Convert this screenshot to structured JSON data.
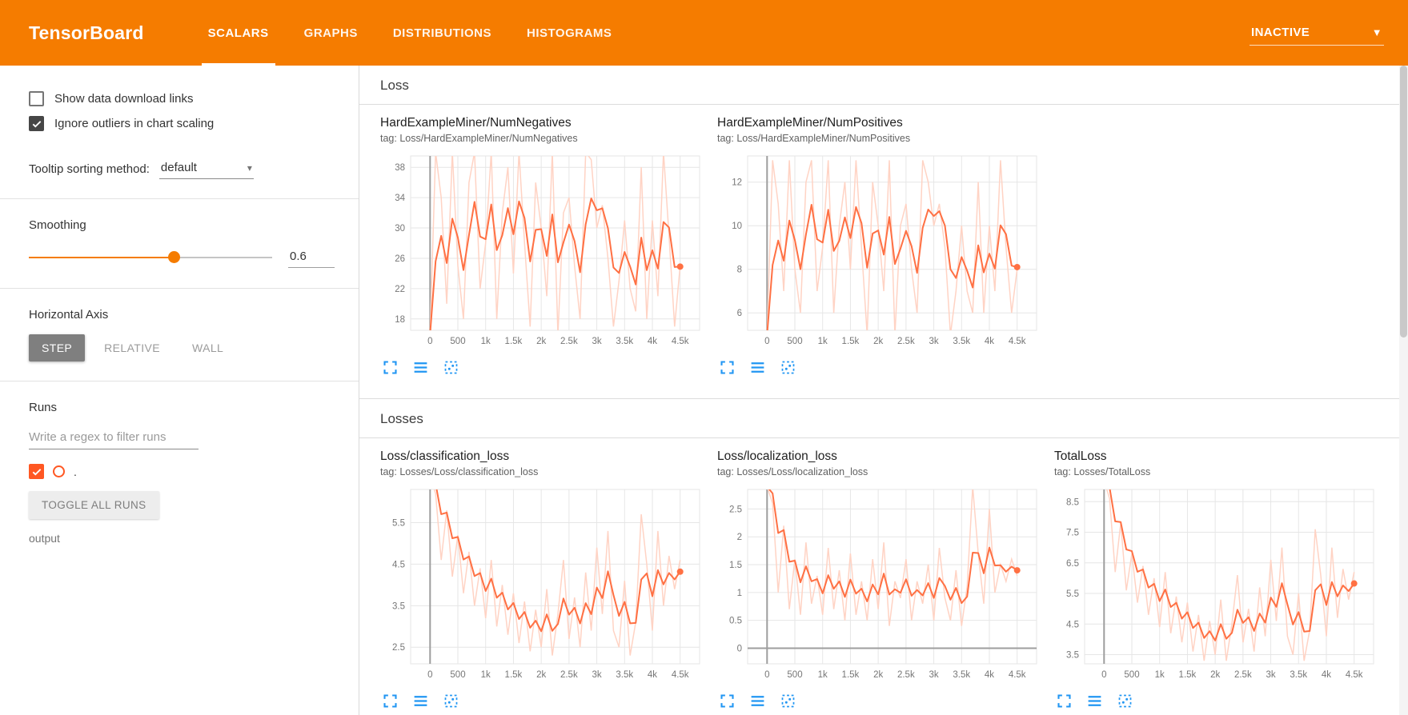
{
  "colors": {
    "header_bg": "#f57c00",
    "accent_orange": "#f57c00",
    "line": "#ff7043",
    "line_faint": "#ffd3c4",
    "icon_blue": "#2196f3",
    "run_color": "#ff5722",
    "checkbox_dark": "#464646"
  },
  "icons": {
    "caret_down": "▾",
    "caret_down_filled": "▼"
  },
  "header": {
    "logo": "TensorBoard",
    "tabs": [
      {
        "label": "SCALARS",
        "active": true
      },
      {
        "label": "GRAPHS",
        "active": false
      },
      {
        "label": "DISTRIBUTIONS",
        "active": false
      },
      {
        "label": "HISTOGRAMS",
        "active": false
      }
    ],
    "run_status": {
      "value": "INACTIVE"
    }
  },
  "sidebar": {
    "checkboxes": [
      {
        "label": "Show data download links",
        "checked": false
      },
      {
        "label": "Ignore outliers in chart scaling",
        "checked": true
      }
    ],
    "tooltip_sorting": {
      "label": "Tooltip sorting method:",
      "value": "default"
    },
    "smoothing": {
      "label": "Smoothing",
      "value": "0.6"
    },
    "horizontal_axis": {
      "label": "Horizontal Axis",
      "options": [
        {
          "label": "STEP",
          "selected": true
        },
        {
          "label": "RELATIVE",
          "selected": false
        },
        {
          "label": "WALL",
          "selected": false
        }
      ]
    },
    "runs": {
      "label": "Runs",
      "filter_placeholder": "Write a regex to filter runs",
      "items": [
        {
          "name": ".",
          "checked": true
        }
      ],
      "toggle_all_label": "TOGGLE ALL RUNS",
      "group_label": "output"
    }
  },
  "main": {
    "sections": [
      {
        "title": "Loss",
        "charts": [
          {
            "title": "HardExampleMiner/NumNegatives",
            "tag": "tag: Loss/HardExampleMiner/NumNegatives"
          },
          {
            "title": "HardExampleMiner/NumPositives",
            "tag": "tag: Loss/HardExampleMiner/NumPositives"
          }
        ]
      },
      {
        "title": "Losses",
        "charts": [
          {
            "title": "Loss/classification_loss",
            "tag": "tag: Losses/Loss/classification_loss"
          },
          {
            "title": "Loss/localization_loss",
            "tag": "tag: Losses/Loss/localization_loss"
          },
          {
            "title": "TotalLoss",
            "tag": "tag: Losses/TotalLoss"
          }
        ]
      }
    ]
  },
  "chart_shared": {
    "xlim": [
      -350,
      4850
    ],
    "x_tick_values": [
      0,
      500,
      1000,
      1500,
      2000,
      2500,
      3000,
      3500,
      4000,
      4500
    ],
    "x_tick_labels": [
      "0",
      "500",
      "1k",
      "1.5k",
      "2k",
      "2.5k",
      "3k",
      "3.5k",
      "4k",
      "4.5k"
    ],
    "x_start": 0,
    "x_interval": 100,
    "smoothing": 0.6,
    "xlabel": "step",
    "grid": true,
    "legend": "none"
  },
  "chart_data": [
    {
      "type": "line",
      "title": "HardExampleMiner/NumNegatives",
      "ylim": [
        16.5,
        39.5
      ],
      "yticks": [
        18,
        22,
        26,
        30,
        34,
        38
      ],
      "values": [
        16,
        40,
        34,
        20,
        40,
        25,
        18,
        36,
        40,
        22,
        28,
        40,
        18,
        32,
        38,
        24,
        40,
        28,
        17,
        36,
        30,
        21,
        40,
        16,
        32,
        34,
        25,
        18,
        40,
        39,
        30,
        33,
        26,
        17,
        23,
        31,
        22,
        19,
        38,
        18,
        31,
        21,
        40,
        29,
        17,
        25
      ]
    },
    {
      "type": "line",
      "title": "HardExampleMiner/NumPositives",
      "ylim": [
        5.2,
        13.2
      ],
      "yticks": [
        6,
        8,
        10,
        12
      ],
      "values": [
        5,
        13,
        11,
        7,
        13,
        8,
        6,
        12,
        13,
        7,
        9,
        13,
        6,
        10,
        12,
        8,
        13,
        9,
        5,
        12,
        10,
        7,
        13,
        5,
        10,
        11,
        8,
        6,
        13,
        12,
        10,
        11,
        9,
        5,
        7,
        10,
        7,
        6,
        12,
        6,
        10,
        7,
        13,
        9,
        6,
        8
      ]
    },
    {
      "type": "line",
      "title": "Loss/classification_loss",
      "ylim": [
        2.1,
        6.3
      ],
      "yticks": [
        2.5,
        3.5,
        4.5,
        5.5
      ],
      "values": [
        6.6,
        6.2,
        4.6,
        5.8,
        4.2,
        5.2,
        3.8,
        4.8,
        3.5,
        4.4,
        3.2,
        4.6,
        3.0,
        4.0,
        2.8,
        3.8,
        2.6,
        3.6,
        2.4,
        3.4,
        2.5,
        3.9,
        2.3,
        3.3,
        4.6,
        2.7,
        3.7,
        2.5,
        4.3,
        2.9,
        4.9,
        3.3,
        5.3,
        2.9,
        2.5,
        4.1,
        2.3,
        3.1,
        5.7,
        4.5,
        2.9,
        5.3,
        3.5,
        4.7,
        3.9,
        4.6
      ]
    },
    {
      "type": "line",
      "title": "Loss/localization_loss",
      "ylim": [
        -0.28,
        2.85
      ],
      "yticks": [
        0,
        0.5,
        1,
        1.5,
        2,
        2.5
      ],
      "values": [
        2.9,
        2.6,
        1.0,
        2.2,
        0.7,
        1.6,
        0.6,
        1.9,
        0.8,
        1.3,
        0.6,
        1.8,
        0.7,
        1.4,
        0.5,
        1.7,
        0.6,
        1.2,
        0.5,
        1.6,
        0.7,
        1.9,
        0.4,
        1.2,
        0.9,
        1.6,
        0.5,
        1.2,
        0.8,
        1.5,
        0.5,
        1.8,
        0.9,
        0.5,
        1.4,
        0.4,
        1.1,
        2.9,
        1.7,
        0.8,
        2.5,
        1.0,
        1.5,
        1.2,
        1.6,
        1.3
      ]
    },
    {
      "type": "line",
      "title": "TotalLoss",
      "ylim": [
        3.2,
        8.9
      ],
      "yticks": [
        3.5,
        4.5,
        5.5,
        6.5,
        7.5,
        8.5
      ],
      "values": [
        9.2,
        8.6,
        6.2,
        7.8,
        5.6,
        6.8,
        5.2,
        6.4,
        4.8,
        6.0,
        4.4,
        6.2,
        4.2,
        5.4,
        3.9,
        5.2,
        3.6,
        4.8,
        3.3,
        4.6,
        3.5,
        5.3,
        3.3,
        4.5,
        6.1,
        3.9,
        5.0,
        3.6,
        5.7,
        4.1,
        6.6,
        4.6,
        7.0,
        4.1,
        3.5,
        5.5,
        3.3,
        4.3,
        7.6,
        6.1,
        4.1,
        7.0,
        4.7,
        6.3,
        5.3,
        6.2
      ]
    }
  ]
}
